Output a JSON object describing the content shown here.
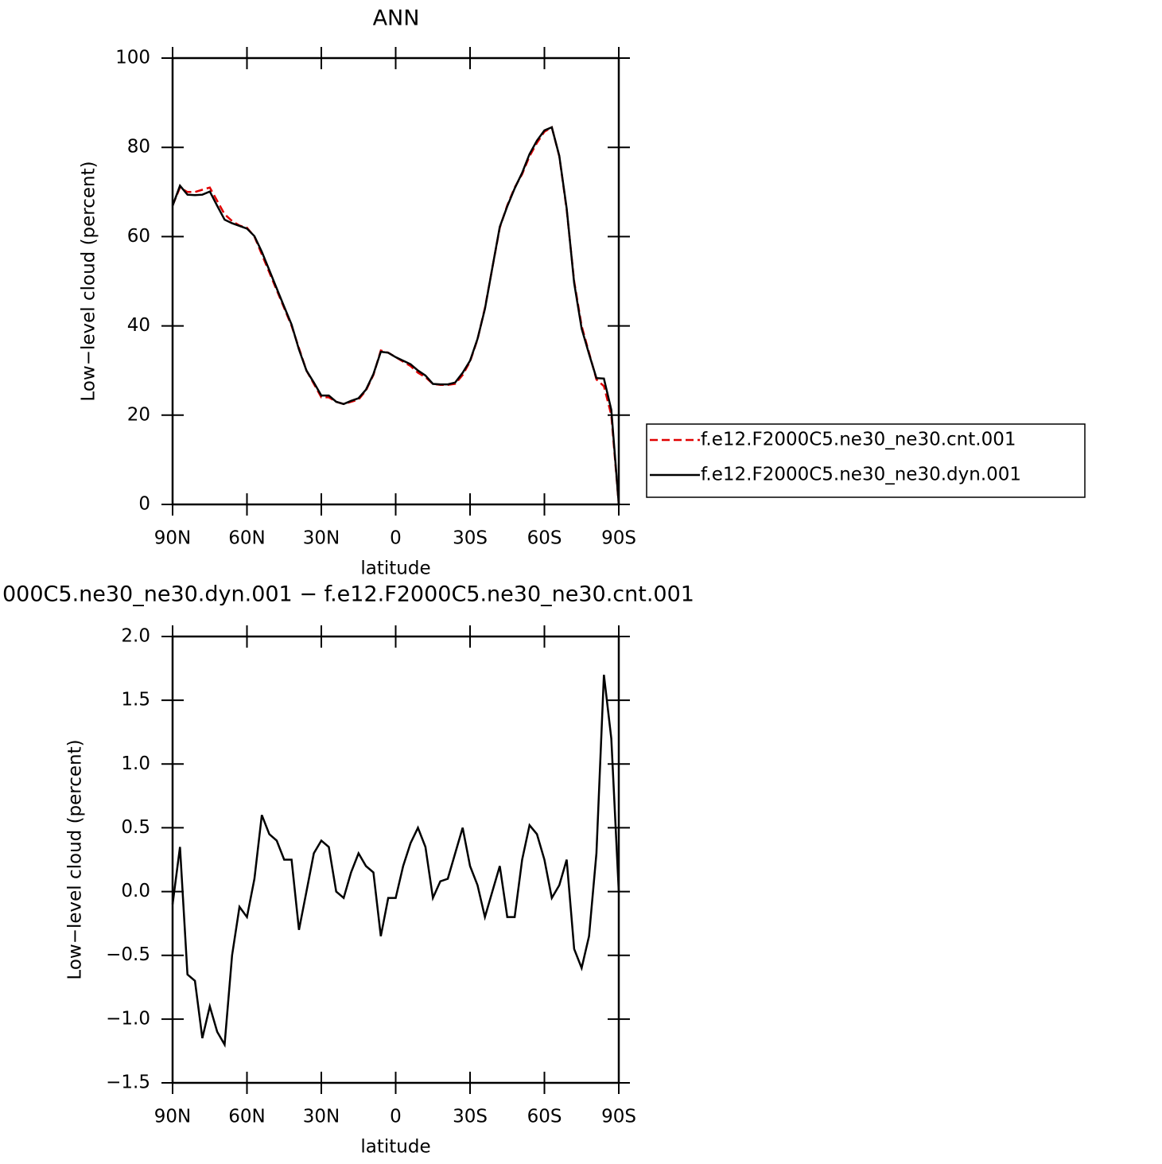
{
  "chart_data": [
    {
      "type": "line",
      "title": "ANN",
      "x_label": "latitude",
      "y_label": "Low−level cloud (percent)",
      "x": [
        90,
        87,
        84,
        81,
        78,
        75,
        72,
        69,
        66,
        63,
        60,
        57,
        54,
        51,
        48,
        45,
        42,
        39,
        36,
        33,
        30,
        27,
        24,
        21,
        18,
        15,
        12,
        9,
        6,
        3,
        0,
        -3,
        -6,
        -9,
        -12,
        -15,
        -18,
        -21,
        -24,
        -27,
        -30,
        -33,
        -36,
        -39,
        -42,
        -45,
        -48,
        -51,
        -54,
        -57,
        -60,
        -63,
        -66,
        -69,
        -72,
        -75,
        -78,
        -81,
        -84,
        -87,
        -90
      ],
      "xlim": [
        90,
        -90
      ],
      "xticks": [
        {
          "value": 90,
          "label": "90N"
        },
        {
          "value": 60,
          "label": "60N"
        },
        {
          "value": 30,
          "label": "30N"
        },
        0,
        {
          "value": -30,
          "label": "30S"
        },
        {
          "value": -60,
          "label": "60S"
        },
        {
          "value": -90,
          "label": "90S"
        }
      ],
      "ylim": [
        0,
        100
      ],
      "yticks": [
        0,
        20,
        40,
        60,
        80,
        100
      ],
      "series": [
        {
          "name": "f.e12.F2000C5.ne30_ne30.cnt.001",
          "color": "#e00000",
          "style": "dashed",
          "values": [
            67,
            71,
            70,
            70,
            70.5,
            71,
            68,
            65,
            63.5,
            62.5,
            62,
            60,
            56,
            52,
            48,
            44,
            40,
            35,
            30,
            27,
            24,
            24,
            23,
            22.5,
            23,
            23.5,
            25.5,
            29,
            34.5,
            34,
            33,
            32,
            31,
            29.5,
            28.5,
            27,
            26.8,
            26.8,
            27,
            29,
            32,
            37,
            44,
            53,
            62,
            67,
            71,
            74,
            78,
            81,
            83.5,
            84.5,
            78,
            66,
            50,
            40,
            34,
            28,
            26.5,
            20,
            0
          ]
        },
        {
          "name": "f.e12.F2000C5.ne30_ne30.dyn.001",
          "color": "#000000",
          "style": "solid",
          "values": [
            66.9,
            71.4,
            69.4,
            69.3,
            69.4,
            70.1,
            66.9,
            63.8,
            63.0,
            62.4,
            61.8,
            60.1,
            56.6,
            52.5,
            48.4,
            44.3,
            40.3,
            34.7,
            30.0,
            27.3,
            24.4,
            24.4,
            23.0,
            22.5,
            23.2,
            23.8,
            25.7,
            29.2,
            34.2,
            34.0,
            33.0,
            32.2,
            31.4,
            30.0,
            28.9,
            27.0,
            26.9,
            26.9,
            27.3,
            29.5,
            32.2,
            37.1,
            43.8,
            53.0,
            62.2,
            66.8,
            70.8,
            74.3,
            78.5,
            81.5,
            83.8,
            84.5,
            78.1,
            66.3,
            49.6,
            39.4,
            33.7,
            28.3,
            28.2,
            21.2,
            0
          ]
        }
      ]
    },
    {
      "type": "line",
      "title": "000C5.ne30_ne30.dyn.001 − f.e12.F2000C5.ne30_ne30.cnt.001",
      "x_label": "latitude",
      "y_label": "Low−level cloud (percent)",
      "x": [
        90,
        87,
        84,
        81,
        78,
        75,
        72,
        69,
        66,
        63,
        60,
        57,
        54,
        51,
        48,
        45,
        42,
        39,
        36,
        33,
        30,
        27,
        24,
        21,
        18,
        15,
        12,
        9,
        6,
        3,
        0,
        -3,
        -6,
        -9,
        -12,
        -15,
        -18,
        -21,
        -24,
        -27,
        -30,
        -33,
        -36,
        -39,
        -42,
        -45,
        -48,
        -51,
        -54,
        -57,
        -60,
        -63,
        -66,
        -69,
        -72,
        -75,
        -78,
        -81,
        -84,
        -87,
        -90
      ],
      "xlim": [
        90,
        -90
      ],
      "xticks": [
        {
          "value": 90,
          "label": "90N"
        },
        {
          "value": 60,
          "label": "60N"
        },
        {
          "value": 30,
          "label": "30N"
        },
        0,
        {
          "value": -30,
          "label": "30S"
        },
        {
          "value": -60,
          "label": "60S"
        },
        {
          "value": -90,
          "label": "90S"
        }
      ],
      "ylim": [
        -1.5,
        2.0
      ],
      "yticks": [
        {
          "value": -1.5,
          "label": "−1.5"
        },
        {
          "value": -1.0,
          "label": "−1.0"
        },
        {
          "value": -0.5,
          "label": "−0.5"
        },
        {
          "value": 0,
          "label": "0.0"
        },
        0.5,
        {
          "value": 1.0,
          "label": "1.0"
        },
        1.5,
        {
          "value": 2.0,
          "label": "2.0"
        }
      ],
      "series": [
        {
          "color": "#000000",
          "style": "solid",
          "values": [
            -0.1,
            0.35,
            -0.65,
            -0.7,
            -1.15,
            -0.9,
            -1.1,
            -1.2,
            -0.5,
            -0.12,
            -0.2,
            0.1,
            0.6,
            0.45,
            0.4,
            0.25,
            0.25,
            -0.3,
            0,
            0.3,
            0.4,
            0.35,
            0,
            -0.05,
            0.15,
            0.3,
            0.2,
            0.15,
            -0.35,
            -0.05,
            -0.05,
            0.2,
            0.38,
            0.5,
            0.35,
            -0.05,
            0.08,
            0.1,
            0.3,
            0.5,
            0.2,
            0.05,
            -0.2,
            0,
            0.2,
            -0.2,
            -0.2,
            0.25,
            0.52,
            0.45,
            0.25,
            -0.05,
            0.05,
            0.25,
            -0.45,
            -0.6,
            -0.35,
            0.3,
            1.7,
            1.2,
            0
          ]
        }
      ]
    }
  ]
}
